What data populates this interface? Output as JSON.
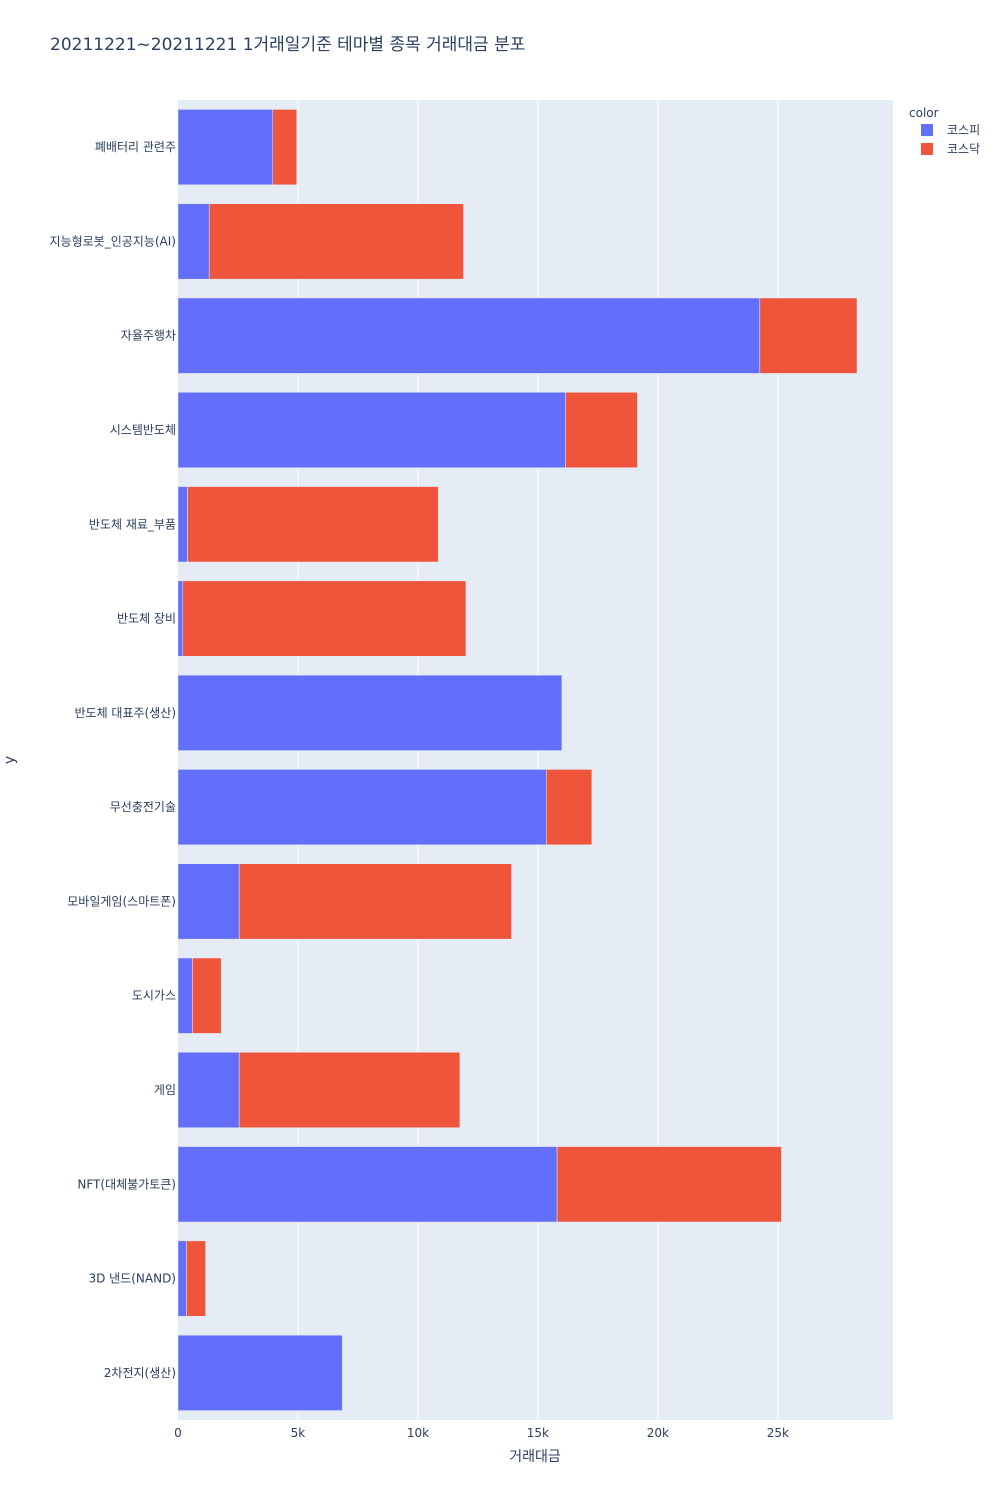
{
  "chart_data": {
    "type": "bar",
    "orientation": "horizontal",
    "barmode": "stack",
    "title": "20211221~20211221 1거래일기준 테마별 종목 거래대금 분포",
    "xlabel": "거래대금",
    "ylabel": "y",
    "xlim": [
      0,
      29800
    ],
    "xticks": [
      0,
      5000,
      10000,
      15000,
      20000,
      25000
    ],
    "xtick_labels": [
      "0",
      "5k",
      "10k",
      "15k",
      "20k",
      "25k"
    ],
    "categories": [
      "폐배터리 관련주",
      "지능형로봇_인공지능(AI)",
      "자율주행차",
      "시스템반도체",
      "반도체 재료_부품",
      "반도체 장비",
      "반도체 대표주(생산)",
      "무선충전기술",
      "모바일게임(스마트폰)",
      "도시가스",
      "게임",
      "NFT(대체불가토큰)",
      "3D 낸드(NAND)",
      "2차전지(생산)"
    ],
    "series": [
      {
        "name": "코스피",
        "color": "#636efa",
        "values": [
          3950,
          1300,
          24250,
          16150,
          400,
          200,
          16000,
          15350,
          2550,
          600,
          2550,
          15800,
          350,
          6850
        ]
      },
      {
        "name": "코스닥",
        "color": "#ef553b",
        "values": [
          1000,
          10600,
          4050,
          3000,
          10450,
          11800,
          0,
          1900,
          11350,
          1200,
          9200,
          9350,
          800,
          0
        ]
      }
    ],
    "legend": {
      "title": "color",
      "placement": "top-right"
    },
    "grid": true
  }
}
